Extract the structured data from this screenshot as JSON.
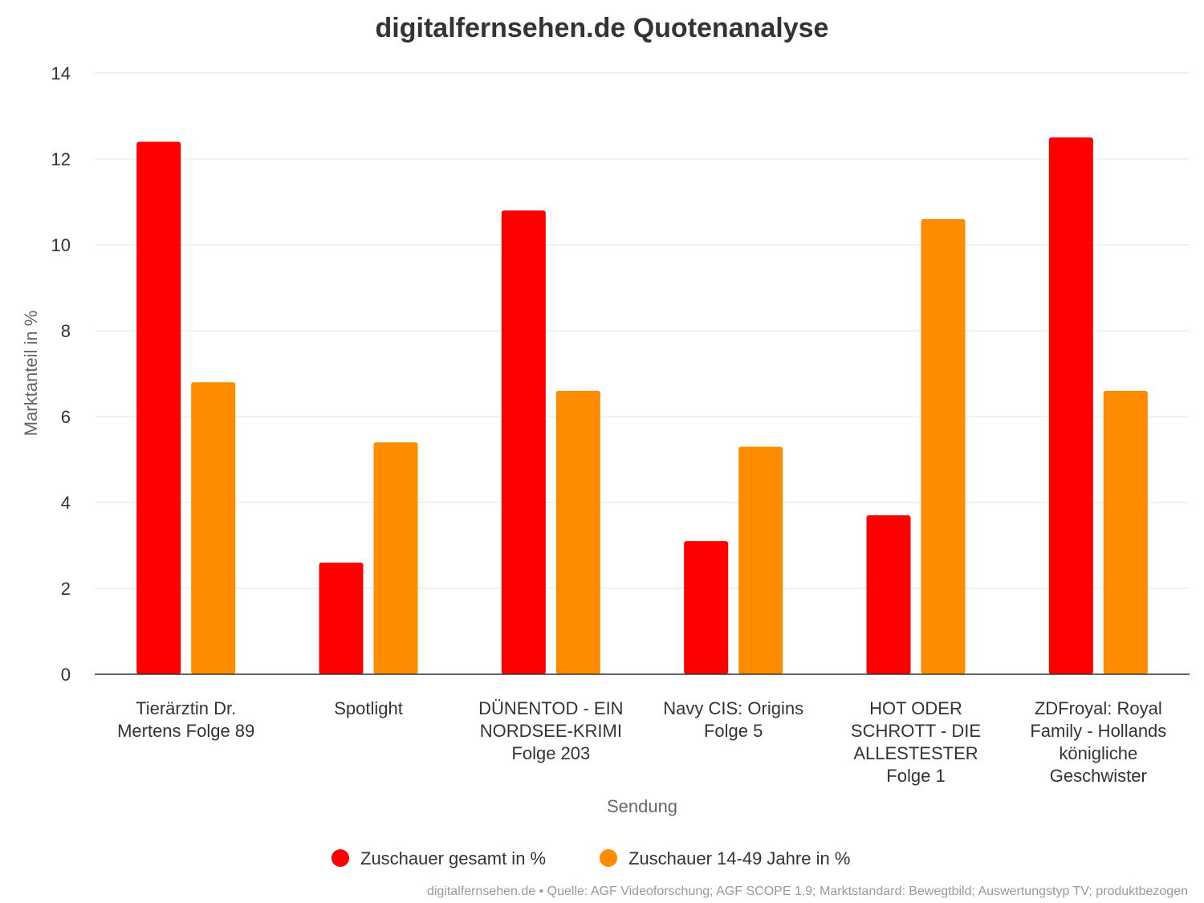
{
  "chart_data": {
    "type": "bar",
    "title": "digitalfernsehen.de Quotenanalyse",
    "xlabel": "Sendung",
    "ylabel": "Marktanteil in %",
    "ylim": [
      0,
      14
    ],
    "yticks": [
      "0",
      "2",
      "4",
      "6",
      "8",
      "10",
      "12",
      "14"
    ],
    "grid": true,
    "legend_position": "bottom-center",
    "categories": [
      [
        "Tierärztin Dr.",
        "Mertens Folge 89"
      ],
      [
        "Spotlight"
      ],
      [
        "DÜNENTOD - EIN",
        "NORDSEE-KRIMI",
        "Folge 203"
      ],
      [
        "Navy CIS: Origins",
        "Folge 5"
      ],
      [
        "HOT ODER",
        "SCHROTT - DIE",
        "ALLESTESTER",
        "Folge 1"
      ],
      [
        "ZDFroyal: Royal",
        "Family - Hollands",
        "königliche",
        "Geschwister"
      ]
    ],
    "series": [
      {
        "name": "Zuschauer gesamt in %",
        "color": "#ff0000",
        "values": [
          12.4,
          2.6,
          10.8,
          3.1,
          3.7,
          12.5
        ]
      },
      {
        "name": "Zuschauer 14-49 Jahre in %",
        "color": "#ff8c00",
        "values": [
          6.8,
          5.4,
          6.6,
          5.3,
          10.6,
          6.6
        ]
      }
    ],
    "credit": "digitalfernsehen.de • Quelle: AGF Videoforschung; AGF SCOPE 1.9; Marktstandard: Bewegtbild; Auswertungstyp TV; produktbezogen"
  }
}
